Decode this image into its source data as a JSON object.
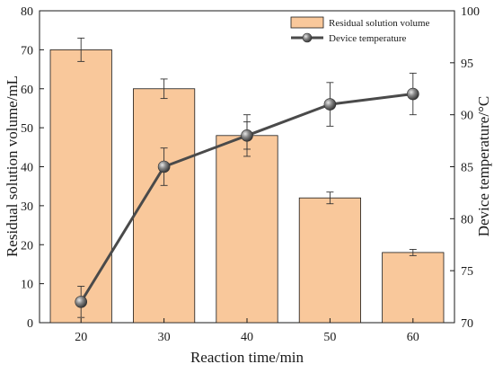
{
  "chart_data": {
    "type": "bar",
    "xlabel": "Reaction time/min",
    "ylabel": "Residual solution volume/mL",
    "y2label": "Device temperature/°C",
    "categories": [
      "20",
      "30",
      "40",
      "50",
      "60"
    ],
    "ylim": [
      0,
      80
    ],
    "yticks": [
      "0",
      "10",
      "20",
      "30",
      "40",
      "50",
      "60",
      "70",
      "80"
    ],
    "y2lim": [
      70,
      100
    ],
    "y2ticks": [
      "70",
      "75",
      "80",
      "85",
      "90",
      "95",
      "100"
    ],
    "legend_position": "top-right",
    "grid": false,
    "series": [
      {
        "name": "Residual solution volume",
        "kind": "bar",
        "axis": "left",
        "values": [
          70,
          60,
          48,
          32,
          18
        ],
        "errors": [
          3,
          2.5,
          3.5,
          1.5,
          0.8
        ],
        "color": "#f9c89b",
        "edge_color": "#1a1a1a"
      },
      {
        "name": "Device temperature",
        "kind": "line",
        "axis": "right",
        "values": [
          72,
          85,
          88,
          91,
          92
        ],
        "errors": [
          1.5,
          1.8,
          2,
          2.1,
          2.0
        ],
        "color": "#4a4a4a",
        "marker_color": "#6a6a6a"
      }
    ]
  }
}
